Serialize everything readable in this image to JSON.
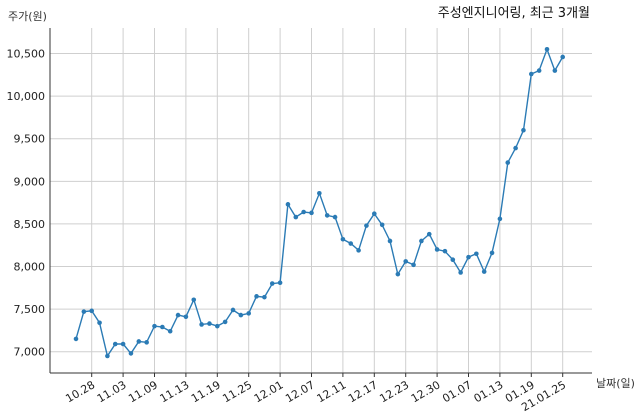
{
  "chart_data": {
    "type": "line",
    "title": "주성엔지니어링, 최근 3개월",
    "ylabel": "주가(원)",
    "xlabel": "날짜(일)",
    "ylim": [
      6750,
      10800
    ],
    "yticks": [
      7000,
      7500,
      8000,
      8500,
      9000,
      9500,
      10000,
      10500
    ],
    "ytick_labels": [
      "7,000",
      "7,500",
      "8,000",
      "8,500",
      "9,000",
      "9,500",
      "10,000",
      "10,500"
    ],
    "xtick_labels": [
      "10.28",
      "11.03",
      "11.09",
      "11.13",
      "11.19",
      "11.25",
      "12.01",
      "12.07",
      "12.11",
      "12.17",
      "12.23",
      "12.30",
      "01.07",
      "01.13",
      "01.19",
      "21.01.25"
    ],
    "xtick_indices": [
      2,
      6,
      10,
      14,
      18,
      22,
      26,
      30,
      34,
      38,
      42,
      46,
      50,
      54,
      58,
      62
    ],
    "grid": true,
    "color": "#2b7bb5",
    "series": [
      {
        "values": [
          7150,
          7470,
          7480,
          7340,
          6950,
          7090,
          7090,
          6980,
          7120,
          7110,
          7300,
          7290,
          7240,
          7430,
          7410,
          7610,
          7320,
          7330,
          7300,
          7350,
          7490,
          7430,
          7450,
          7650,
          7640,
          7800,
          7810,
          8730,
          8580,
          8640,
          8630,
          8860,
          8600,
          8580,
          8320,
          8270,
          8190,
          8480,
          8620,
          8490,
          8300,
          7910,
          8060,
          8020,
          8300,
          8380,
          8200,
          8180,
          8080,
          7930,
          8110,
          8150,
          7940,
          8160,
          8560,
          9220,
          9390,
          9600,
          10260,
          10300,
          10550,
          10300,
          10460
        ]
      }
    ]
  }
}
